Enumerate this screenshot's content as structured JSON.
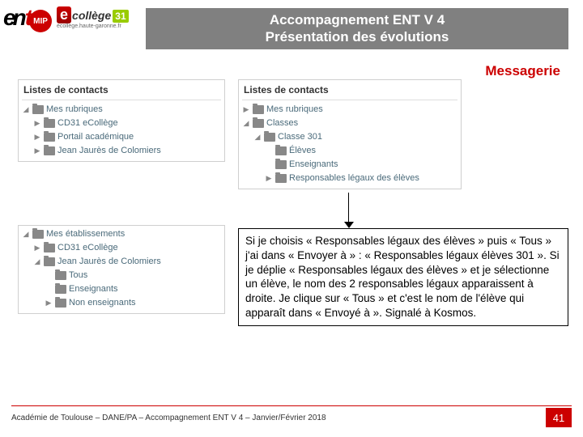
{
  "logo": {
    "e": "e",
    "n": "n",
    "t": "t",
    "mip": "MIP",
    "ec_e": "e",
    "ec_college": "collège",
    "ec_31": "31",
    "ec_sub": "ecollege.haute-garonne.fr"
  },
  "title": {
    "line1": "Accompagnement ENT V 4",
    "line2": "Présentation des évolutions"
  },
  "subtitle": "Messagerie",
  "box1": {
    "header": "Listes de contacts",
    "items": [
      {
        "arrow": "◢",
        "label": "Mes rubriques",
        "indent": 0
      },
      {
        "arrow": "▶",
        "label": "CD31 eCollège",
        "indent": 1
      },
      {
        "arrow": "▶",
        "label": "Portail académique",
        "indent": 1
      },
      {
        "arrow": "▶",
        "label": "Jean Jaurès de Colomiers",
        "indent": 1
      }
    ]
  },
  "box2": {
    "header": "Listes de contacts",
    "items": [
      {
        "arrow": "▶",
        "label": "Mes rubriques",
        "indent": 0
      },
      {
        "arrow": "◢",
        "label": "Classes",
        "indent": 0
      },
      {
        "arrow": "◢",
        "label": "Classe 301",
        "indent": 1
      },
      {
        "arrow": "",
        "label": "Élèves",
        "indent": 2
      },
      {
        "arrow": "",
        "label": "Enseignants",
        "indent": 2
      },
      {
        "arrow": "▶",
        "label": "Responsables légaux des élèves",
        "indent": 2
      }
    ]
  },
  "box3": {
    "items": [
      {
        "arrow": "◢",
        "label": "Mes établissements",
        "indent": 0
      },
      {
        "arrow": "▶",
        "label": "CD31 eCollège",
        "indent": 1
      },
      {
        "arrow": "◢",
        "label": "Jean Jaurès de Colomiers",
        "indent": 1
      },
      {
        "arrow": "",
        "label": "Tous",
        "indent": 2
      },
      {
        "arrow": "",
        "label": "Enseignants",
        "indent": 2
      },
      {
        "arrow": "▶",
        "label": "Non enseignants",
        "indent": 2
      }
    ]
  },
  "explain": "Si je choisis « Responsables légaux des élèves » puis « Tous » j'ai dans « Envoyer à » : « Responsables légaux élèves 301 ».\nSi je déplie « Responsables légaux des élèves » et je sélectionne un élève, le nom des 2 responsables légaux apparaissent à droite. Je clique sur « Tous » et c'est le nom de l'élève qui apparaît dans « Envoyé à ».\nSignalé à Kosmos.",
  "footer": "Académie de Toulouse – DANE/PA – Accompagnement ENT V 4 – Janvier/Février 2018",
  "pagenum": "41"
}
